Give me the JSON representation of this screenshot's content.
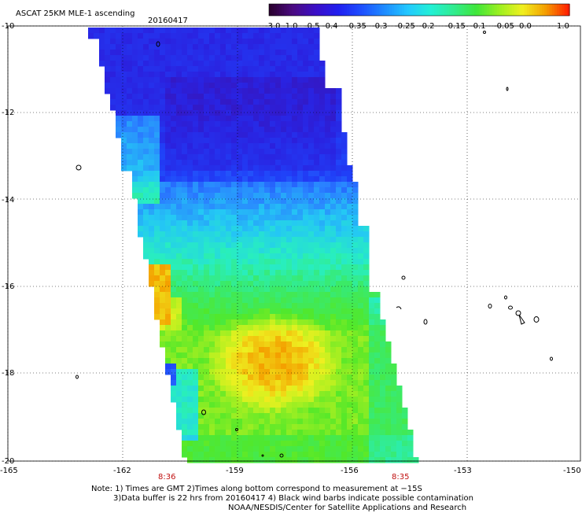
{
  "header": {
    "title": "ASCAT 25KM MLE-1 ascending",
    "date": "20160417"
  },
  "colorbar": {
    "labels": [
      "-3.0",
      "-1.0",
      "-0.5",
      "-0.4",
      "-0.35",
      "-0.3",
      "-0.25",
      "-0.2",
      "-0.15",
      "-0.1",
      "-0.05",
      "0.0",
      "1.0"
    ],
    "colors": [
      "#2a0030",
      "#4b0a82",
      "#3a0fc8",
      "#2020f0",
      "#1e50ff",
      "#1e8cff",
      "#22c8ff",
      "#22f0d6",
      "#30ec90",
      "#40e63a",
      "#9cf020",
      "#f0f020",
      "#f4a000",
      "#ff2000"
    ]
  },
  "axes": {
    "lat_labels": [
      "-10",
      "-12",
      "-14",
      "-16",
      "-18",
      "-20"
    ],
    "lon_labels": [
      "-165",
      "-162",
      "-159",
      "-156",
      "-153",
      "-150"
    ]
  },
  "times": {
    "left": "8:36",
    "right": "8:35"
  },
  "notes": {
    "line1": "Note: 1) Times are GMT 2)Times along bottom correspond to measurement at −15S",
    "line2": "3)Data buffer is 22 hrs from 20160417 4) Black wind barbs indicate possible contamination",
    "line3": "NOAA/NESDIS/Center for Satellite Applications and Research"
  }
}
